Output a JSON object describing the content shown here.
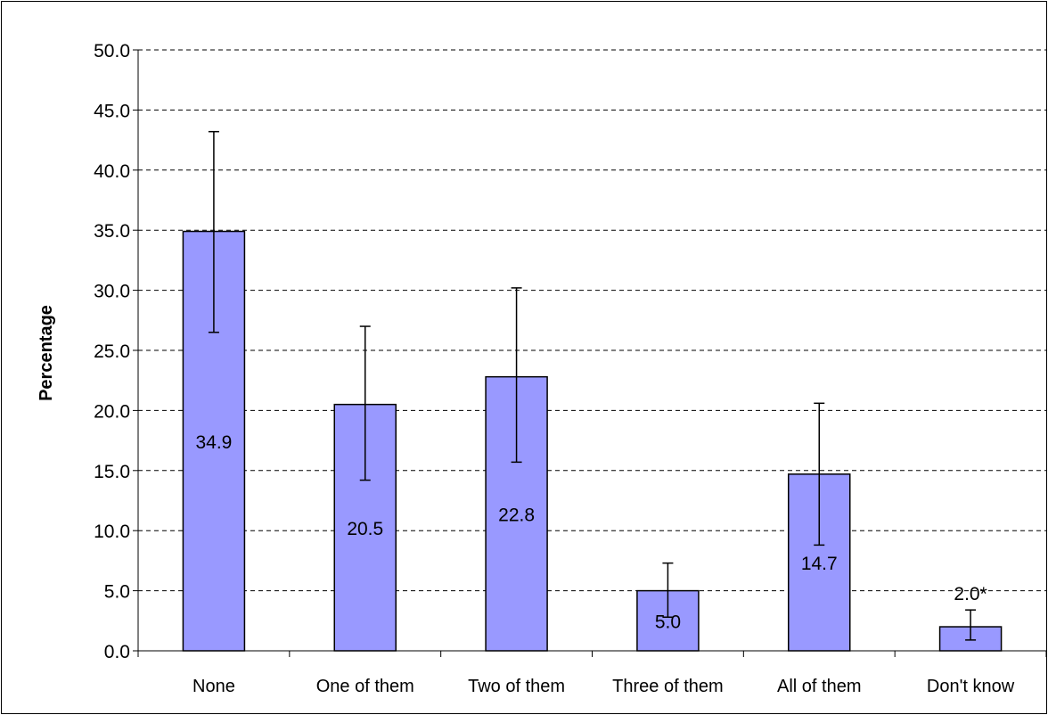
{
  "chart_data": {
    "type": "bar",
    "title": "",
    "xlabel": "",
    "ylabel": "Percentage",
    "ylim": [
      0,
      50
    ],
    "y_ticks": [
      "0.0",
      "5.0",
      "10.0",
      "15.0",
      "20.0",
      "25.0",
      "30.0",
      "35.0",
      "40.0",
      "45.0",
      "50.0"
    ],
    "grid": true,
    "legend": "none",
    "categories": [
      "None",
      "One of them",
      "Two of them",
      "Three of them",
      "All of them",
      "Don't know"
    ],
    "values": [
      34.9,
      20.5,
      22.8,
      5.0,
      14.7,
      2.0
    ],
    "data_labels": [
      "34.9",
      "20.5",
      "22.8",
      "5.0",
      "14.7",
      "2.0*"
    ],
    "error_low": [
      26.5,
      14.2,
      15.7,
      2.8,
      8.8,
      0.9
    ],
    "error_high": [
      43.2,
      27.0,
      30.2,
      7.3,
      20.6,
      3.4
    ],
    "bar_color": "#9999ff",
    "bar_outline": "#000000"
  }
}
